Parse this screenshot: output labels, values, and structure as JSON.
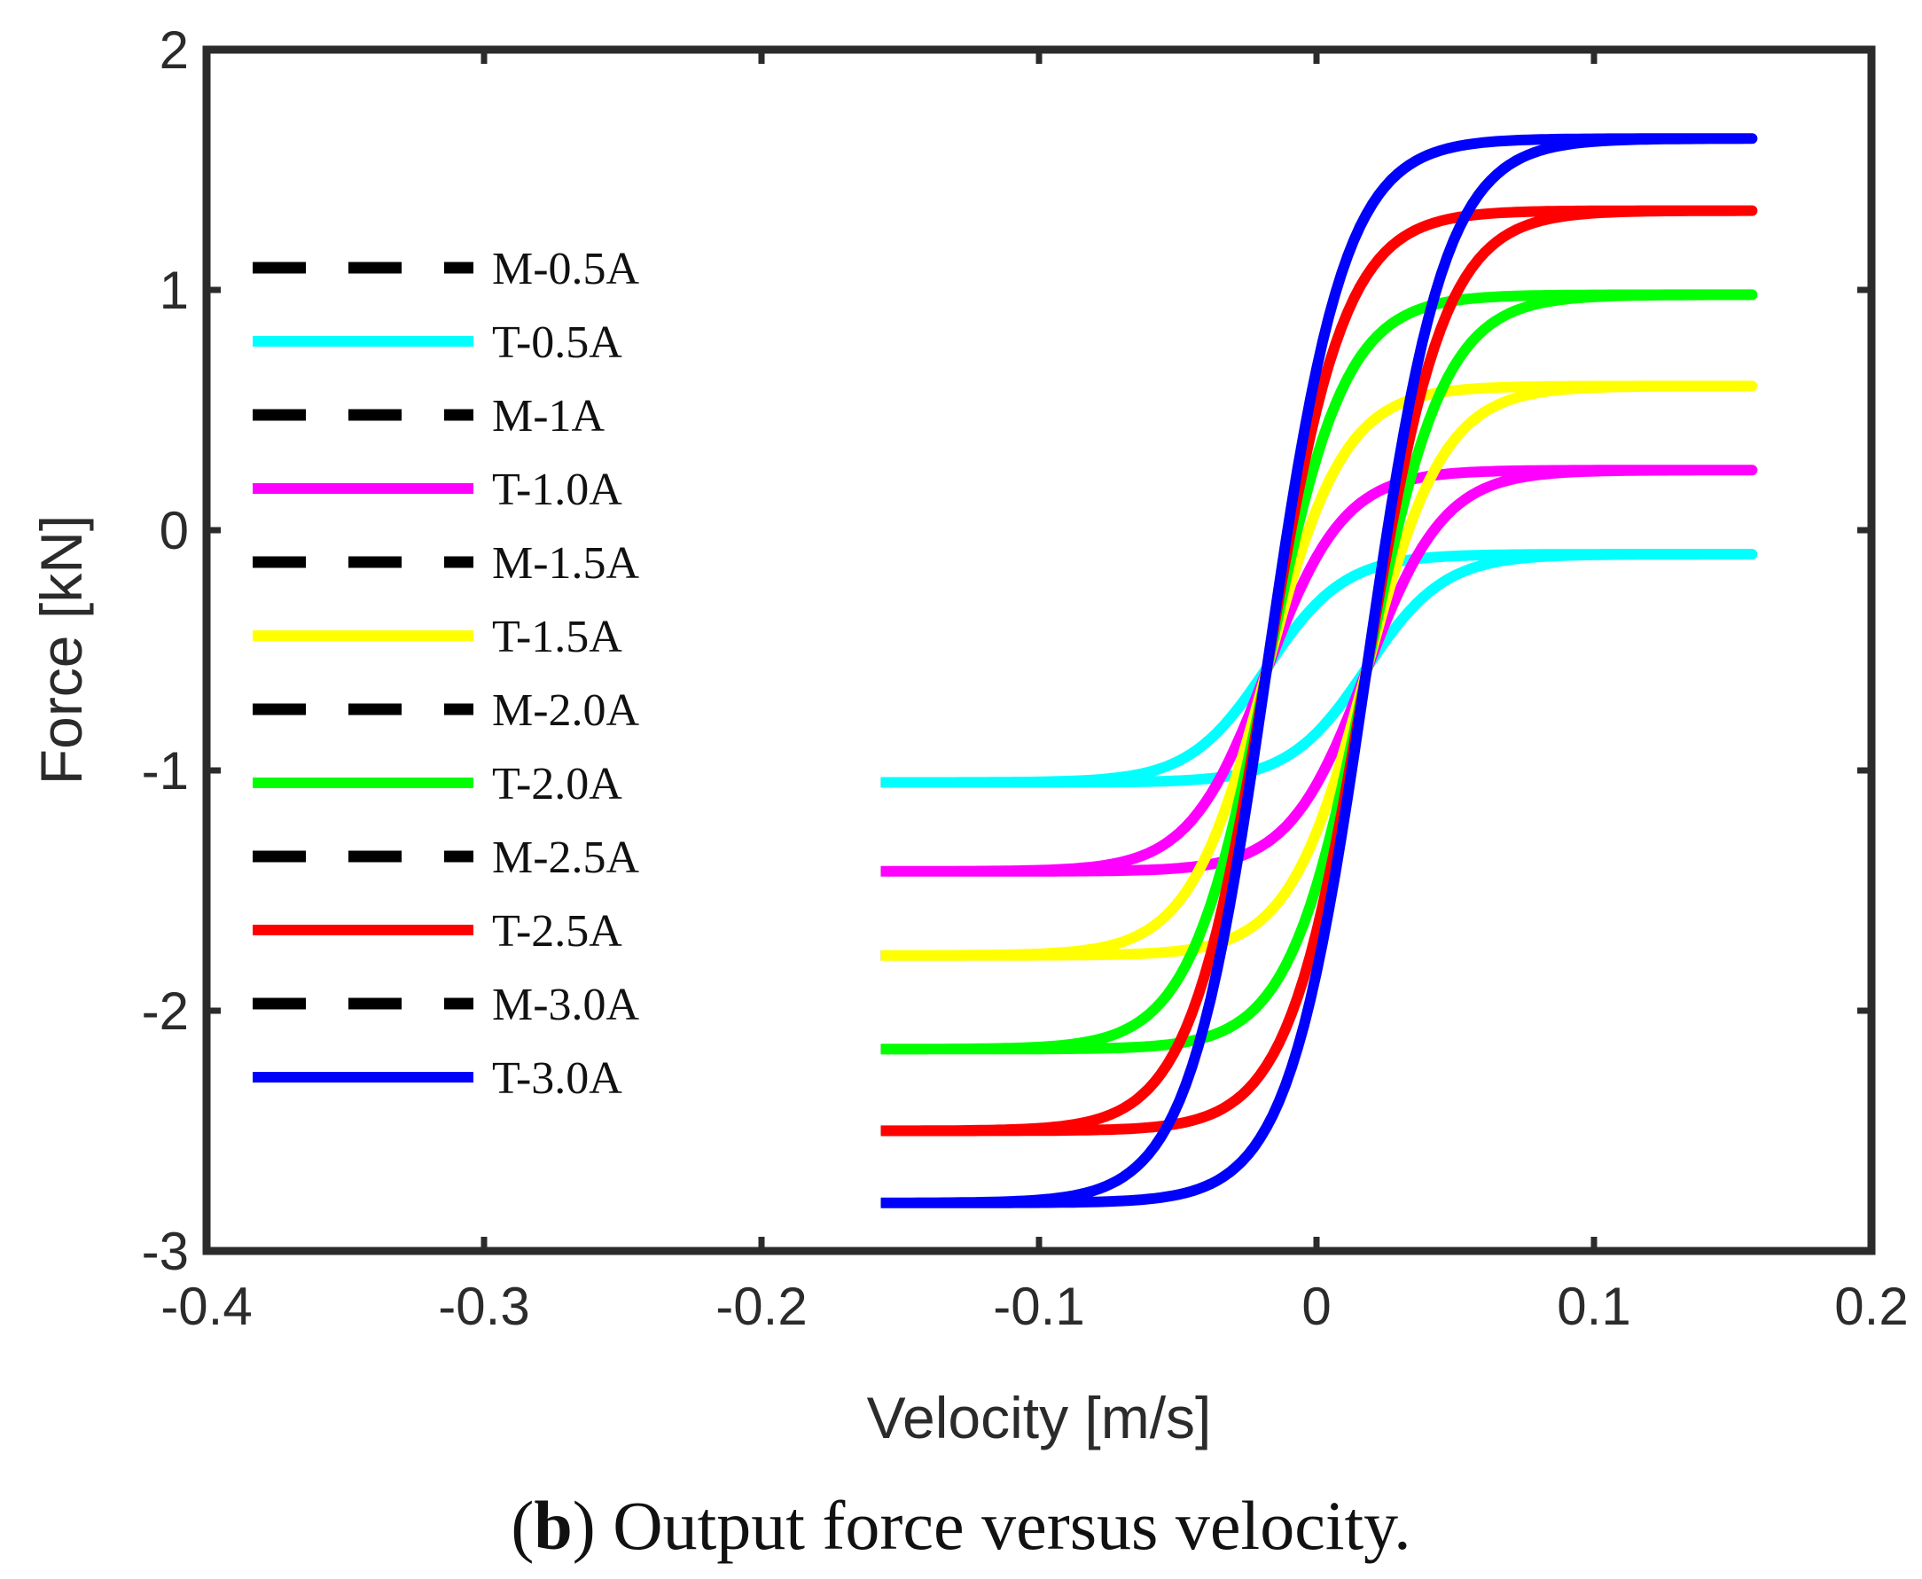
{
  "chart_data": {
    "type": "line",
    "title": "",
    "xlabel": "Velocity [m/s]",
    "ylabel": "Force [kN]",
    "xlim": [
      -0.4,
      0.2
    ],
    "ylim": [
      -3,
      2
    ],
    "xticks": [
      -0.4,
      -0.3,
      -0.2,
      -0.1,
      0,
      0.1,
      0.2
    ],
    "xtick_labels": [
      "-0.4",
      "-0.3",
      "-0.2",
      "-0.1",
      "0",
      "0.1",
      "0.2"
    ],
    "yticks": [
      -3,
      -2,
      -1,
      0,
      1,
      2
    ],
    "ytick_labels": [
      "-3",
      "-2",
      "-1",
      "0",
      "1",
      "2"
    ],
    "grid": false,
    "legend_position": "left",
    "caption_bold": "b",
    "caption_open": "(",
    "caption_close": ")",
    "caption_text": " Output force versus velocity.",
    "hysteresis": {
      "v_max": 0.157,
      "shift": 0.018,
      "transition_width": 0.028
    },
    "series": [
      {
        "name": "M-0.5A",
        "color": "#000000",
        "style": "dashed",
        "f_min": -1.05,
        "f_max": -0.1
      },
      {
        "name": "T-0.5A",
        "color": "#00ffff",
        "style": "solid",
        "f_min": -1.05,
        "f_max": -0.1
      },
      {
        "name": "M-1A",
        "color": "#000000",
        "style": "dashed",
        "f_min": -1.42,
        "f_max": 0.25
      },
      {
        "name": "T-1.0A",
        "color": "#ff00ff",
        "style": "solid",
        "f_min": -1.42,
        "f_max": 0.25
      },
      {
        "name": "M-1.5A",
        "color": "#000000",
        "style": "dashed",
        "f_min": -1.77,
        "f_max": 0.6
      },
      {
        "name": "T-1.5A",
        "color": "#ffff00",
        "style": "solid",
        "f_min": -1.77,
        "f_max": 0.6
      },
      {
        "name": "M-2.0A",
        "color": "#000000",
        "style": "dashed",
        "f_min": -2.16,
        "f_max": 0.98
      },
      {
        "name": "T-2.0A",
        "color": "#00ff00",
        "style": "solid",
        "f_min": -2.16,
        "f_max": 0.98
      },
      {
        "name": "M-2.5A",
        "color": "#000000",
        "style": "dashed",
        "f_min": -2.5,
        "f_max": 1.33
      },
      {
        "name": "T-2.5A",
        "color": "#ff0000",
        "style": "solid",
        "f_min": -2.5,
        "f_max": 1.33
      },
      {
        "name": "M-3.0A",
        "color": "#000000",
        "style": "dashed",
        "f_min": -2.8,
        "f_max": 1.63
      },
      {
        "name": "T-3.0A",
        "color": "#0000ff",
        "style": "solid",
        "f_min": -2.8,
        "f_max": 1.63
      }
    ]
  }
}
